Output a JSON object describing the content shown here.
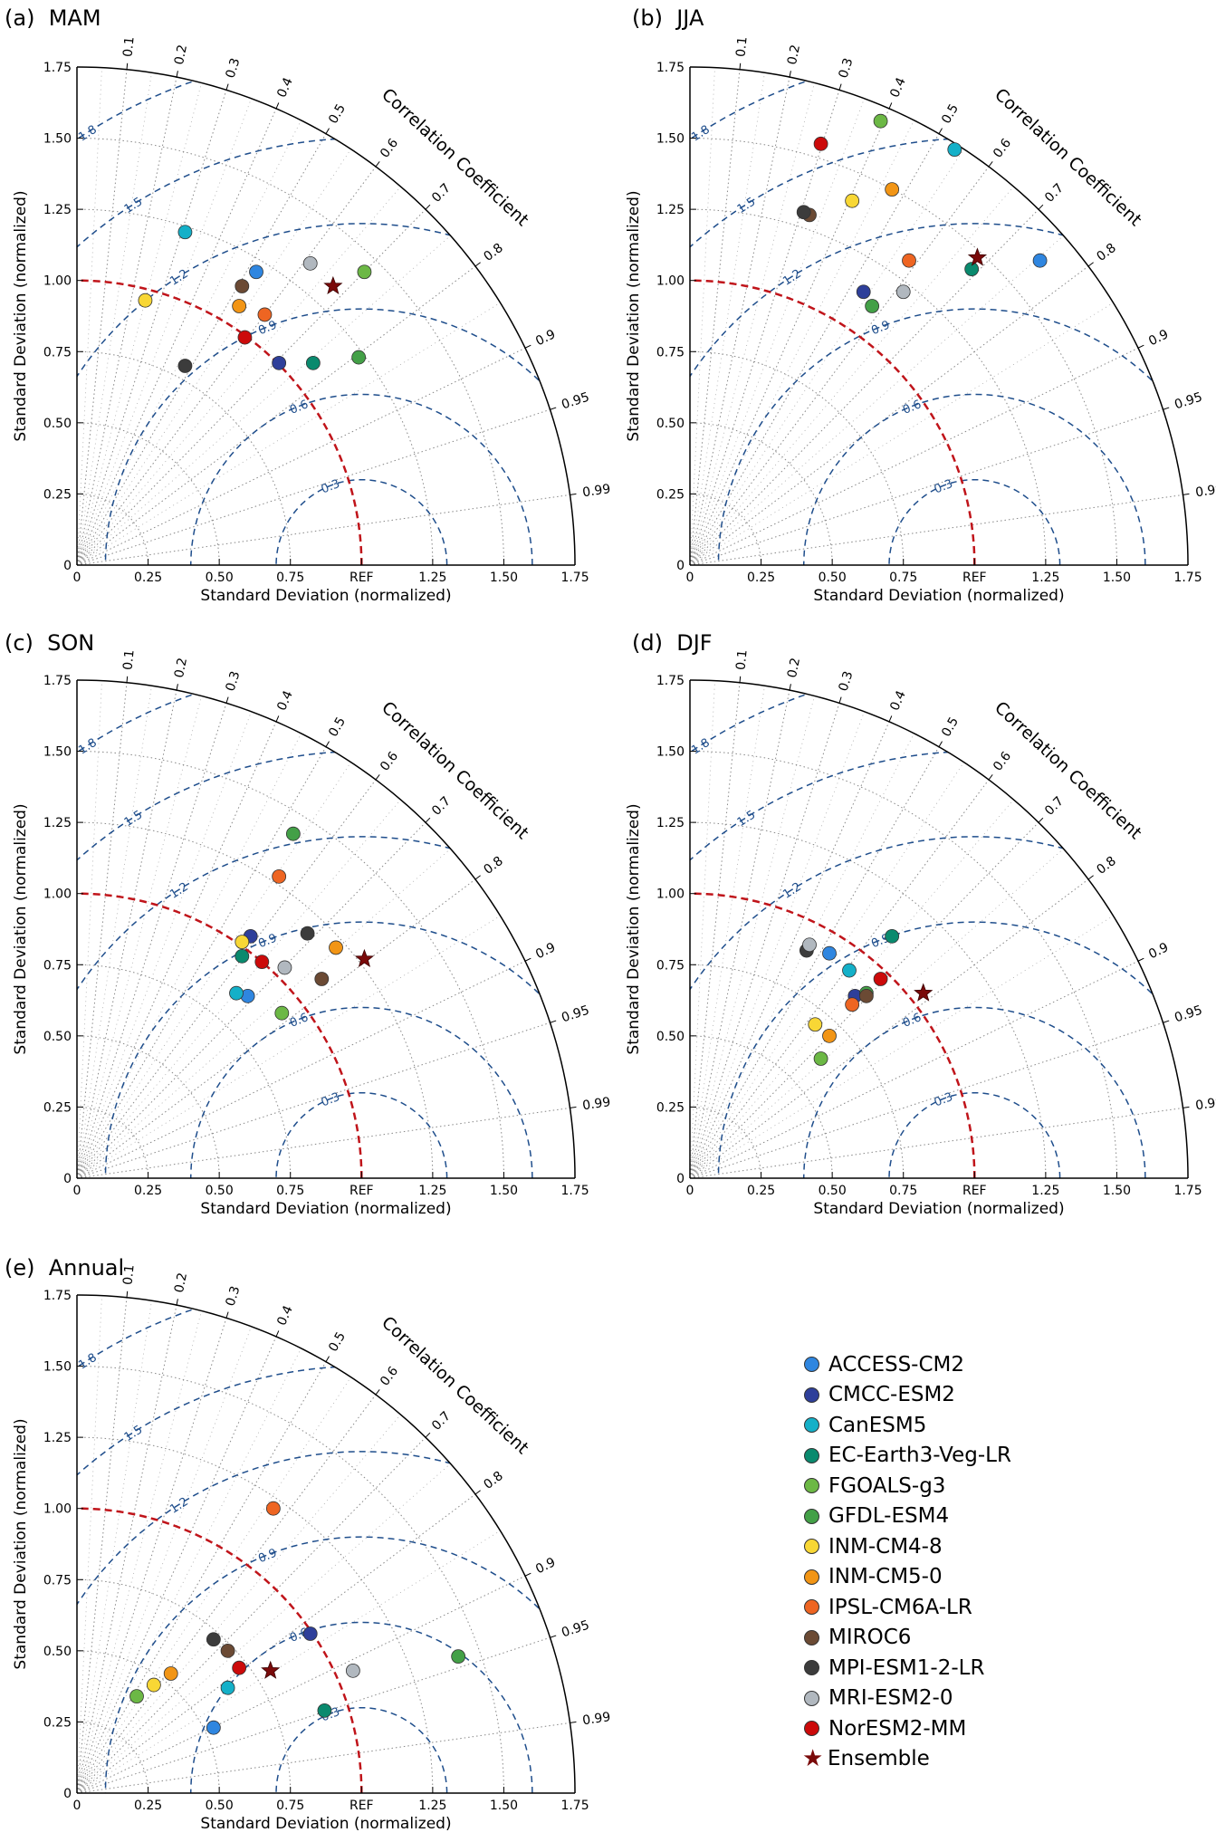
{
  "models": [
    {
      "name": "ACCESS-CM2",
      "color": "#2f86e0"
    },
    {
      "name": "CMCC-ESM2",
      "color": "#2e3f9a"
    },
    {
      "name": "CanESM5",
      "color": "#14b0c8"
    },
    {
      "name": "EC-Earth3-Veg-LR",
      "color": "#0a8a6e"
    },
    {
      "name": "FGOALS-g3",
      "color": "#6cb845"
    },
    {
      "name": "GFDL-ESM4",
      "color": "#43a047"
    },
    {
      "name": "INM-CM4-8",
      "color": "#f8d735"
    },
    {
      "name": "INM-CM5-0",
      "color": "#f29515"
    },
    {
      "name": "IPSL-CM6A-LR",
      "color": "#ee6522"
    },
    {
      "name": "MIROC6",
      "color": "#6b4a34"
    },
    {
      "name": "MPI-ESM1-2-LR",
      "color": "#3c3c3c"
    },
    {
      "name": "MRI-ESM2-0",
      "color": "#b1b8bf"
    },
    {
      "name": "NorESM2-MM",
      "color": "#cc0a0a"
    }
  ],
  "ensemble": {
    "name": "Ensemble",
    "color": "#7a0a0a"
  },
  "chart_data": [
    {
      "type": "scatter",
      "subtype": "taylor-diagram",
      "title": "(a)  MAM",
      "xlabel": "Standard Deviation (normalized)",
      "ylabel": "Standard Deviation (normalized)",
      "corr_label": "Correlation Coefficient",
      "ref_label": "REF",
      "points": [
        {
          "model": "ACCESS-CM2",
          "x": 0.63,
          "y": 1.03
        },
        {
          "model": "CMCC-ESM2",
          "x": 0.71,
          "y": 0.71
        },
        {
          "model": "CanESM5",
          "x": 0.38,
          "y": 1.17
        },
        {
          "model": "EC-Earth3-Veg-LR",
          "x": 0.83,
          "y": 0.71
        },
        {
          "model": "FGOALS-g3",
          "x": 1.01,
          "y": 1.03
        },
        {
          "model": "GFDL-ESM4",
          "x": 0.99,
          "y": 0.73
        },
        {
          "model": "INM-CM4-8",
          "x": 0.24,
          "y": 0.93
        },
        {
          "model": "INM-CM5-0",
          "x": 0.57,
          "y": 0.91
        },
        {
          "model": "IPSL-CM6A-LR",
          "x": 0.66,
          "y": 0.88
        },
        {
          "model": "MIROC6",
          "x": 0.58,
          "y": 0.98
        },
        {
          "model": "MPI-ESM1-2-LR",
          "x": 0.38,
          "y": 0.7
        },
        {
          "model": "MRI-ESM2-0",
          "x": 0.82,
          "y": 1.06
        },
        {
          "model": "NorESM2-MM",
          "x": 0.59,
          "y": 0.8
        },
        {
          "model": "Ensemble",
          "x": 0.9,
          "y": 0.98
        }
      ]
    },
    {
      "type": "scatter",
      "subtype": "taylor-diagram",
      "title": "(b)  JJA",
      "xlabel": "Standard Deviation (normalized)",
      "ylabel": "Standard Deviation (normalized)",
      "corr_label": "Correlation Coefficient",
      "ref_label": "REF",
      "points": [
        {
          "model": "ACCESS-CM2",
          "x": 1.23,
          "y": 1.07
        },
        {
          "model": "CMCC-ESM2",
          "x": 0.61,
          "y": 0.96
        },
        {
          "model": "CanESM5",
          "x": 0.93,
          "y": 1.46
        },
        {
          "model": "EC-Earth3-Veg-LR",
          "x": 0.99,
          "y": 1.04
        },
        {
          "model": "FGOALS-g3",
          "x": 0.67,
          "y": 1.56
        },
        {
          "model": "GFDL-ESM4",
          "x": 0.64,
          "y": 0.91
        },
        {
          "model": "INM-CM4-8",
          "x": 0.57,
          "y": 1.28
        },
        {
          "model": "INM-CM5-0",
          "x": 0.71,
          "y": 1.32
        },
        {
          "model": "IPSL-CM6A-LR",
          "x": 0.77,
          "y": 1.07
        },
        {
          "model": "MIROC6",
          "x": 0.42,
          "y": 1.23
        },
        {
          "model": "MPI-ESM1-2-LR",
          "x": 0.4,
          "y": 1.24
        },
        {
          "model": "MRI-ESM2-0",
          "x": 0.75,
          "y": 0.96
        },
        {
          "model": "NorESM2-MM",
          "x": 0.46,
          "y": 1.48
        },
        {
          "model": "Ensemble",
          "x": 1.01,
          "y": 1.08
        }
      ]
    },
    {
      "type": "scatter",
      "subtype": "taylor-diagram",
      "title": "(c)  SON",
      "xlabel": "Standard Deviation (normalized)",
      "ylabel": "Standard Deviation (normalized)",
      "corr_label": "Correlation Coefficient",
      "ref_label": "REF",
      "points": [
        {
          "model": "ACCESS-CM2",
          "x": 0.6,
          "y": 0.64
        },
        {
          "model": "CMCC-ESM2",
          "x": 0.61,
          "y": 0.85
        },
        {
          "model": "CanESM5",
          "x": 0.56,
          "y": 0.65
        },
        {
          "model": "EC-Earth3-Veg-LR",
          "x": 0.58,
          "y": 0.78
        },
        {
          "model": "FGOALS-g3",
          "x": 0.72,
          "y": 0.58
        },
        {
          "model": "GFDL-ESM4",
          "x": 0.76,
          "y": 1.21
        },
        {
          "model": "INM-CM4-8",
          "x": 0.58,
          "y": 0.83
        },
        {
          "model": "INM-CM5-0",
          "x": 0.91,
          "y": 0.81
        },
        {
          "model": "IPSL-CM6A-LR",
          "x": 0.71,
          "y": 1.06
        },
        {
          "model": "MIROC6",
          "x": 0.86,
          "y": 0.7
        },
        {
          "model": "MPI-ESM1-2-LR",
          "x": 0.81,
          "y": 0.86
        },
        {
          "model": "MRI-ESM2-0",
          "x": 0.73,
          "y": 0.74
        },
        {
          "model": "NorESM2-MM",
          "x": 0.65,
          "y": 0.76
        },
        {
          "model": "Ensemble",
          "x": 1.01,
          "y": 0.77
        }
      ]
    },
    {
      "type": "scatter",
      "subtype": "taylor-diagram",
      "title": "(d)  DJF",
      "xlabel": "Standard Deviation (normalized)",
      "ylabel": "Standard Deviation (normalized)",
      "corr_label": "Correlation Coefficient",
      "ref_label": "REF",
      "points": [
        {
          "model": "ACCESS-CM2",
          "x": 0.49,
          "y": 0.79
        },
        {
          "model": "CMCC-ESM2",
          "x": 0.58,
          "y": 0.64
        },
        {
          "model": "CanESM5",
          "x": 0.56,
          "y": 0.73
        },
        {
          "model": "EC-Earth3-Veg-LR",
          "x": 0.71,
          "y": 0.85
        },
        {
          "model": "FGOALS-g3",
          "x": 0.46,
          "y": 0.42
        },
        {
          "model": "GFDL-ESM4",
          "x": 0.62,
          "y": 0.65
        },
        {
          "model": "INM-CM4-8",
          "x": 0.44,
          "y": 0.54
        },
        {
          "model": "INM-CM5-0",
          "x": 0.49,
          "y": 0.5
        },
        {
          "model": "IPSL-CM6A-LR",
          "x": 0.57,
          "y": 0.61
        },
        {
          "model": "MIROC6",
          "x": 0.62,
          "y": 0.64
        },
        {
          "model": "MPI-ESM1-2-LR",
          "x": 0.41,
          "y": 0.8
        },
        {
          "model": "MRI-ESM2-0",
          "x": 0.42,
          "y": 0.82
        },
        {
          "model": "NorESM2-MM",
          "x": 0.67,
          "y": 0.7
        },
        {
          "model": "Ensemble",
          "x": 0.82,
          "y": 0.65
        }
      ]
    },
    {
      "type": "scatter",
      "subtype": "taylor-diagram",
      "title": "(e)  Annual",
      "xlabel": "Standard Deviation (normalized)",
      "ylabel": "Standard Deviation (normalized)",
      "corr_label": "Correlation Coefficient",
      "ref_label": "REF",
      "points": [
        {
          "model": "ACCESS-CM2",
          "x": 0.48,
          "y": 0.23
        },
        {
          "model": "CMCC-ESM2",
          "x": 0.82,
          "y": 0.56
        },
        {
          "model": "CanESM5",
          "x": 0.53,
          "y": 0.37
        },
        {
          "model": "EC-Earth3-Veg-LR",
          "x": 0.87,
          "y": 0.29
        },
        {
          "model": "FGOALS-g3",
          "x": 0.21,
          "y": 0.34
        },
        {
          "model": "GFDL-ESM4",
          "x": 1.34,
          "y": 0.48
        },
        {
          "model": "INM-CM4-8",
          "x": 0.27,
          "y": 0.38
        },
        {
          "model": "INM-CM5-0",
          "x": 0.33,
          "y": 0.42
        },
        {
          "model": "IPSL-CM6A-LR",
          "x": 0.69,
          "y": 1.0
        },
        {
          "model": "MIROC6",
          "x": 0.53,
          "y": 0.5
        },
        {
          "model": "MPI-ESM1-2-LR",
          "x": 0.48,
          "y": 0.54
        },
        {
          "model": "MRI-ESM2-0",
          "x": 0.97,
          "y": 0.43
        },
        {
          "model": "NorESM2-MM",
          "x": 0.57,
          "y": 0.44
        },
        {
          "model": "Ensemble",
          "x": 0.68,
          "y": 0.43
        }
      ]
    }
  ],
  "axis": {
    "max": 1.75,
    "std_ticks": [
      "0",
      "0.25",
      "0.50",
      "0.75",
      "REF",
      "1.25",
      "1.50",
      "1.75"
    ],
    "y_ticks": [
      "0",
      "0.25",
      "0.50",
      "0.75",
      "1.00",
      "1.25",
      "1.50",
      "1.75"
    ],
    "corr_ticks": [
      "0.1",
      "0.2",
      "0.3",
      "0.4",
      "0.5",
      "0.6",
      "0.7",
      "0.8",
      "0.9",
      "0.95",
      "0.99"
    ],
    "rmsd_contours": [
      "0.3",
      "0.6",
      "0.9",
      "1.2",
      "1.5",
      "1.8"
    ]
  }
}
